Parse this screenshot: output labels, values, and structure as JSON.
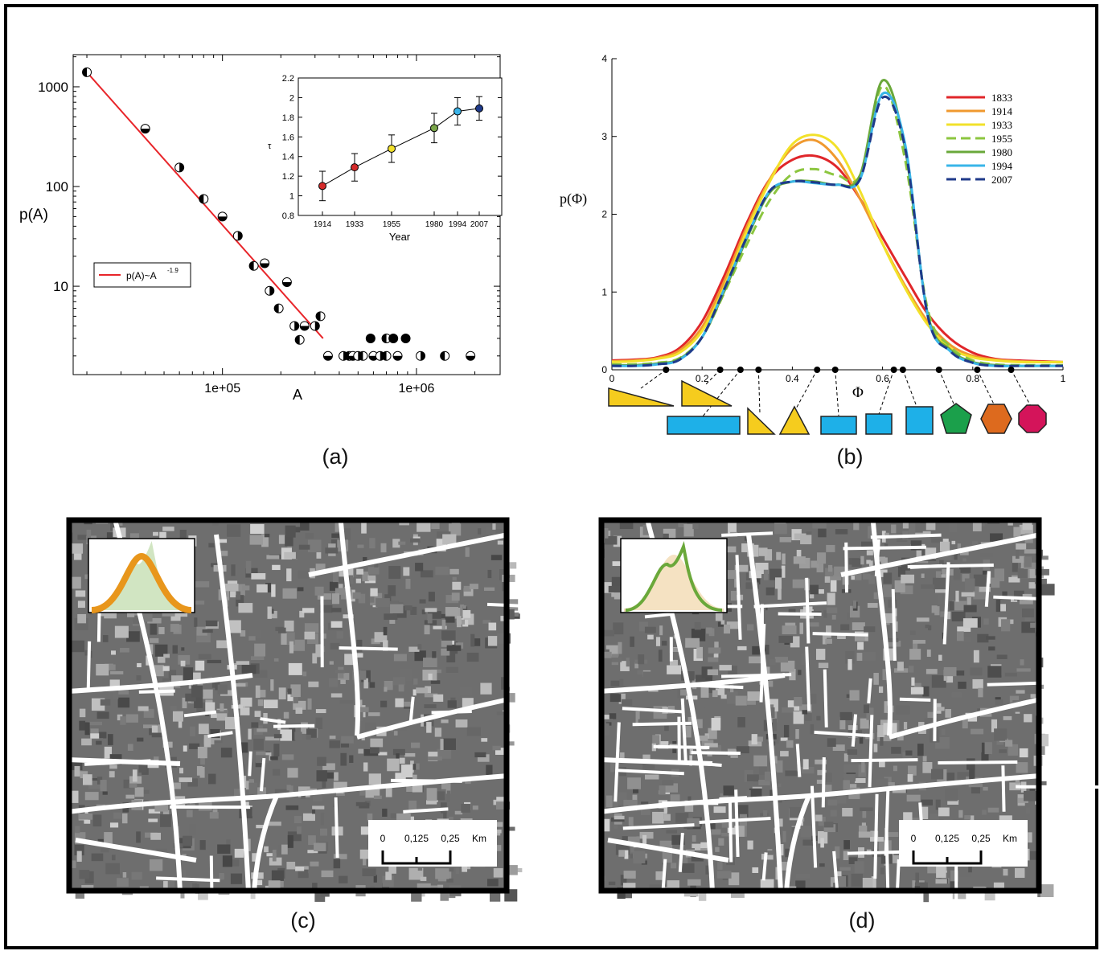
{
  "captions": {
    "a": "(a)",
    "b": "(b)",
    "c": "(c)",
    "d": "(d)"
  },
  "chart_data": [
    {
      "type": "scatter",
      "panel": "a",
      "log_x": true,
      "log_y": true,
      "xlabel": "A",
      "ylabel": "p(A)",
      "xlim": [
        17000,
        2700000
      ],
      "ylim": [
        1.3,
        2100
      ],
      "x_ticks": [
        {
          "value": 100000,
          "label": "1e+05"
        },
        {
          "value": 1000000,
          "label": "1e+06"
        }
      ],
      "y_ticks": [
        {
          "value": 10,
          "label": "10"
        },
        {
          "value": 100,
          "label": "100"
        },
        {
          "value": 1000,
          "label": "1000"
        }
      ],
      "points": [
        [
          20000,
          1400
        ],
        [
          40000,
          380
        ],
        [
          60000,
          155
        ],
        [
          80000,
          75
        ],
        [
          100000,
          50
        ],
        [
          120000,
          32
        ],
        [
          145000,
          16
        ],
        [
          165000,
          17
        ],
        [
          175000,
          9
        ],
        [
          195000,
          6
        ],
        [
          215000,
          11
        ],
        [
          235000,
          4
        ],
        [
          250000,
          2.9
        ],
        [
          265000,
          4
        ],
        [
          300000,
          4
        ],
        [
          320000,
          5
        ],
        [
          350000,
          2
        ],
        [
          420000,
          2
        ],
        [
          450000,
          2
        ],
        [
          470000,
          2
        ],
        [
          500000,
          2
        ],
        [
          530000,
          2
        ],
        [
          600000,
          2
        ],
        [
          650000,
          2
        ],
        [
          700000,
          2
        ],
        [
          800000,
          2
        ],
        [
          1050000,
          2
        ],
        [
          1400000,
          2
        ],
        [
          1900000,
          2
        ],
        [
          580000,
          3
        ],
        [
          700000,
          3
        ],
        [
          760000,
          3
        ],
        [
          880000,
          3
        ]
      ],
      "fit": {
        "label": "p(A)~A",
        "exponent_label": "-1.9",
        "from": [
          20000,
          1400
        ],
        "to": [
          330000,
          3.0
        ],
        "color": "#e8252a"
      },
      "inset": {
        "type": "line",
        "xlabel": "Year",
        "ylabel": "τ",
        "ylim": [
          0.8,
          2.2
        ],
        "y_ticks": [
          "0.8",
          "1",
          "1.2",
          "1.4",
          "1.6",
          "1.8",
          "2",
          "2.2"
        ],
        "x_ticks": [
          "1914",
          "1933",
          "1955",
          "1980",
          "1994",
          "2007"
        ],
        "points": [
          {
            "year": 1914,
            "tau": 1.1,
            "err": 0.15,
            "color": "#d42a2a"
          },
          {
            "year": 1933,
            "tau": 1.29,
            "err": 0.14,
            "color": "#d42a2a"
          },
          {
            "year": 1955,
            "tau": 1.48,
            "err": 0.14,
            "color": "#f2e12a"
          },
          {
            "year": 1980,
            "tau": 1.69,
            "err": 0.15,
            "color": "#7aa64a"
          },
          {
            "year": 1994,
            "tau": 1.86,
            "err": 0.14,
            "color": "#3ab3e8"
          },
          {
            "year": 2007,
            "tau": 1.89,
            "err": 0.12,
            "color": "#1f3a8a"
          }
        ]
      }
    },
    {
      "type": "line",
      "panel": "b",
      "xlabel": "Φ",
      "ylabel": "p(Φ)",
      "xlim": [
        0,
        1
      ],
      "ylim": [
        0,
        4
      ],
      "x_ticks": [
        "0",
        "0.2",
        "0.4",
        "0.6",
        "0.8",
        "1"
      ],
      "y_ticks": [
        "0",
        "1",
        "2",
        "3",
        "4"
      ],
      "x": [
        0,
        0.05,
        0.1,
        0.15,
        0.2,
        0.25,
        0.3,
        0.35,
        0.4,
        0.45,
        0.5,
        0.55,
        0.6,
        0.65,
        0.7,
        0.75,
        0.8,
        0.85,
        0.9,
        0.95,
        1
      ],
      "series": [
        {
          "name": "1833",
          "color": "#e0262a",
          "dash": false,
          "values": [
            0.12,
            0.13,
            0.16,
            0.28,
            0.62,
            1.22,
            1.9,
            2.45,
            2.7,
            2.75,
            2.6,
            2.2,
            1.7,
            1.2,
            0.72,
            0.4,
            0.22,
            0.14,
            0.12,
            0.11,
            0.1
          ]
        },
        {
          "name": "1914",
          "color": "#f0992f",
          "dash": false,
          "values": [
            0.11,
            0.12,
            0.15,
            0.25,
            0.55,
            1.15,
            1.85,
            2.45,
            2.85,
            2.95,
            2.7,
            2.2,
            1.62,
            1.08,
            0.62,
            0.32,
            0.18,
            0.13,
            0.11,
            0.1,
            0.1
          ]
        },
        {
          "name": "1933",
          "color": "#f2e12a",
          "dash": false,
          "values": [
            0.1,
            0.11,
            0.14,
            0.22,
            0.5,
            1.08,
            1.8,
            2.42,
            2.9,
            3.02,
            2.85,
            2.3,
            1.62,
            1.05,
            0.58,
            0.28,
            0.16,
            0.12,
            0.1,
            0.1,
            0.1
          ]
        },
        {
          "name": "1955",
          "color": "#8cc63f",
          "dash": true,
          "values": [
            0.07,
            0.07,
            0.09,
            0.15,
            0.42,
            1.0,
            1.62,
            2.18,
            2.52,
            2.58,
            2.5,
            2.5,
            3.65,
            2.7,
            0.78,
            0.3,
            0.12,
            0.07,
            0.06,
            0.06,
            0.06
          ]
        },
        {
          "name": "1980",
          "color": "#6aa83a",
          "dash": false,
          "values": [
            0.06,
            0.06,
            0.08,
            0.14,
            0.42,
            1.02,
            1.7,
            2.28,
            2.42,
            2.42,
            2.38,
            2.5,
            3.72,
            2.85,
            0.72,
            0.26,
            0.1,
            0.06,
            0.05,
            0.05,
            0.05
          ]
        },
        {
          "name": "1994",
          "color": "#39b5e8",
          "dash": false,
          "values": [
            0.05,
            0.05,
            0.07,
            0.13,
            0.42,
            1.05,
            1.72,
            2.3,
            2.42,
            2.4,
            2.38,
            2.45,
            3.55,
            2.9,
            0.7,
            0.24,
            0.09,
            0.05,
            0.05,
            0.05,
            0.05
          ]
        },
        {
          "name": "2007",
          "color": "#1f3a8a",
          "dash": true,
          "values": [
            0.05,
            0.05,
            0.07,
            0.13,
            0.42,
            1.05,
            1.72,
            2.3,
            2.42,
            2.41,
            2.38,
            2.45,
            3.5,
            2.85,
            0.7,
            0.24,
            0.09,
            0.05,
            0.05,
            0.05,
            0.05
          ]
        }
      ],
      "shape_markers": [
        0.12,
        0.24,
        0.285,
        0.325,
        0.455,
        0.495,
        0.625,
        0.645,
        0.725,
        0.81,
        0.885
      ],
      "shapes": [
        {
          "kind": "right-triangle-flat",
          "color": "#f5cc1e"
        },
        {
          "kind": "right-triangle-steep",
          "color": "#f5cc1e"
        },
        {
          "kind": "long-rectangle",
          "color": "#1eb0e8"
        },
        {
          "kind": "right-triangle-small",
          "color": "#f5cc1e"
        },
        {
          "kind": "isoceles-triangle",
          "color": "#f5cc1e"
        },
        {
          "kind": "rectangle",
          "color": "#1eb0e8"
        },
        {
          "kind": "near-square",
          "color": "#1eb0e8"
        },
        {
          "kind": "square",
          "color": "#1eb0e8"
        },
        {
          "kind": "pentagon",
          "color": "#1ba04b"
        },
        {
          "kind": "hexagon",
          "color": "#dd6a1e"
        },
        {
          "kind": "octagon",
          "color": "#d4145a"
        }
      ]
    }
  ],
  "maps": {
    "c": {
      "inset_colors": [
        "#e8961c",
        "#c6dfb4"
      ],
      "scale_labels": [
        "0",
        "0,125",
        "0,25",
        "Km"
      ]
    },
    "d": {
      "inset_colors": [
        "#6aa83a",
        "#f3dcb4"
      ],
      "scale_labels": [
        "0",
        "0,125",
        "0,25",
        "Km"
      ]
    }
  }
}
